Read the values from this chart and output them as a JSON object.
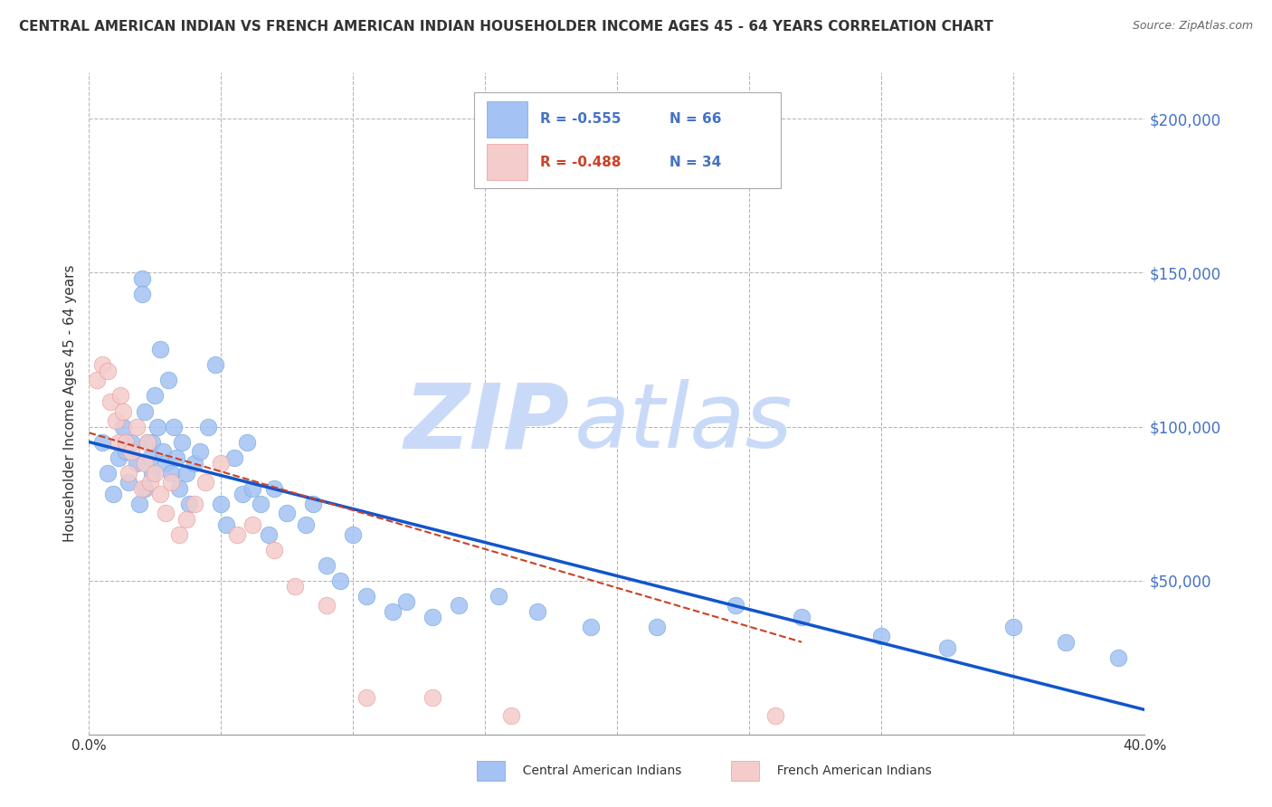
{
  "title": "CENTRAL AMERICAN INDIAN VS FRENCH AMERICAN INDIAN HOUSEHOLDER INCOME AGES 45 - 64 YEARS CORRELATION CHART",
  "source": "Source: ZipAtlas.com",
  "ylabel": "Householder Income Ages 45 - 64 years",
  "xlim": [
    0.0,
    0.4
  ],
  "ylim": [
    0,
    215000
  ],
  "xticks": [
    0.0,
    0.05,
    0.1,
    0.15,
    0.2,
    0.25,
    0.3,
    0.35,
    0.4
  ],
  "xticklabels": [
    "0.0%",
    "",
    "",
    "",
    "",
    "",
    "",
    "",
    "40.0%"
  ],
  "ytick_positions": [
    0,
    50000,
    100000,
    150000,
    200000
  ],
  "ytick_labels": [
    "",
    "$50,000",
    "$100,000",
    "$150,000",
    "$200,000"
  ],
  "blue_R": "-0.555",
  "blue_N": "66",
  "pink_R": "-0.488",
  "pink_N": "34",
  "blue_color": "#a4c2f4",
  "pink_color": "#f4cccc",
  "blue_marker_edge": "#6fa8dc",
  "pink_marker_edge": "#ea9999",
  "blue_line_color": "#1155cc",
  "pink_line_color": "#cc4125",
  "watermark_zip": "ZIP",
  "watermark_atlas": "atlas",
  "watermark_color": "#c9daf8",
  "background_color": "#ffffff",
  "grid_color": "#b7b7b7",
  "blue_scatter_x": [
    0.005,
    0.007,
    0.009,
    0.011,
    0.013,
    0.014,
    0.015,
    0.016,
    0.018,
    0.019,
    0.02,
    0.02,
    0.021,
    0.021,
    0.022,
    0.023,
    0.024,
    0.024,
    0.025,
    0.026,
    0.027,
    0.028,
    0.029,
    0.03,
    0.031,
    0.032,
    0.033,
    0.034,
    0.035,
    0.037,
    0.038,
    0.04,
    0.042,
    0.045,
    0.048,
    0.05,
    0.052,
    0.055,
    0.058,
    0.06,
    0.062,
    0.065,
    0.068,
    0.07,
    0.075,
    0.082,
    0.085,
    0.09,
    0.095,
    0.1,
    0.105,
    0.115,
    0.12,
    0.13,
    0.14,
    0.155,
    0.17,
    0.19,
    0.215,
    0.245,
    0.27,
    0.3,
    0.325,
    0.35,
    0.37,
    0.39
  ],
  "blue_scatter_y": [
    95000,
    85000,
    78000,
    90000,
    100000,
    92000,
    82000,
    95000,
    88000,
    75000,
    148000,
    143000,
    80000,
    105000,
    95000,
    90000,
    85000,
    95000,
    110000,
    100000,
    125000,
    92000,
    88000,
    115000,
    85000,
    100000,
    90000,
    80000,
    95000,
    85000,
    75000,
    88000,
    92000,
    100000,
    120000,
    75000,
    68000,
    90000,
    78000,
    95000,
    80000,
    75000,
    65000,
    80000,
    72000,
    68000,
    75000,
    55000,
    50000,
    65000,
    45000,
    40000,
    43000,
    38000,
    42000,
    45000,
    40000,
    35000,
    35000,
    42000,
    38000,
    32000,
    28000,
    35000,
    30000,
    25000
  ],
  "pink_scatter_x": [
    0.003,
    0.005,
    0.007,
    0.008,
    0.01,
    0.011,
    0.012,
    0.013,
    0.014,
    0.015,
    0.016,
    0.018,
    0.02,
    0.021,
    0.022,
    0.023,
    0.025,
    0.027,
    0.029,
    0.031,
    0.034,
    0.037,
    0.04,
    0.044,
    0.05,
    0.056,
    0.062,
    0.07,
    0.078,
    0.09,
    0.105,
    0.13,
    0.16,
    0.26
  ],
  "pink_scatter_y": [
    115000,
    120000,
    118000,
    108000,
    102000,
    95000,
    110000,
    105000,
    95000,
    85000,
    92000,
    100000,
    80000,
    88000,
    95000,
    82000,
    85000,
    78000,
    72000,
    82000,
    65000,
    70000,
    75000,
    82000,
    88000,
    65000,
    68000,
    60000,
    48000,
    42000,
    12000,
    12000,
    6000,
    6000
  ],
  "blue_trendline_x": [
    0.0,
    0.4
  ],
  "blue_trendline_y": [
    95000,
    8000
  ],
  "pink_trendline_x": [
    0.0,
    0.27
  ],
  "pink_trendline_y": [
    98000,
    30000
  ]
}
